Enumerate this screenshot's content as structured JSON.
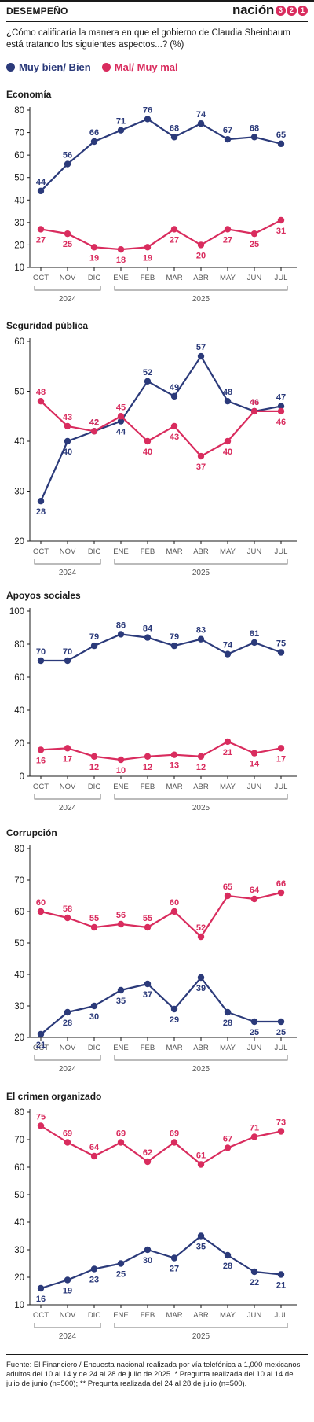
{
  "header": {
    "section": "DESEMPEÑO",
    "brand": "nación",
    "brand_digits": [
      "3",
      "2",
      "1"
    ]
  },
  "question": "¿Cómo calificaría la manera en que el gobierno de Claudia Sheinbaum está tratando los siguientes aspectos...?  (%)",
  "legend": [
    {
      "label": "Muy bien/ Bien",
      "color": "#2b3a7a"
    },
    {
      "label": "Mal/ Muy mal",
      "color": "#d92c5e"
    }
  ],
  "colors": {
    "series_a": "#2b3a7a",
    "series_b": "#d92c5e",
    "axis": "#1a1a1a",
    "tick_text": "#555555"
  },
  "footer": "Fuente:  El Financiero / Encuesta nacional realizada por vía telefónica a 1,000 mexicanos adultos del 10 al 14 y de 24 al 28 de julio de 2025. * Pregunta realizada del 10 al 14 de julio de junio (n=500); ** Pregunta realizada del 24 al 28 de julio (n=500).",
  "chart_data": [
    {
      "type": "line",
      "title": "Economía",
      "categories": [
        "OCT",
        "NOV",
        "DIC",
        "ENE",
        "FEB",
        "MAR",
        "ABR",
        "MAY",
        "JUN",
        "JUL"
      ],
      "year_groups": [
        {
          "label": "2024",
          "from": 0,
          "to": 2
        },
        {
          "label": "2025",
          "from": 3,
          "to": 9
        }
      ],
      "ylim": [
        10,
        80
      ],
      "yticks": [
        10,
        20,
        30,
        40,
        50,
        60,
        70,
        80
      ],
      "series": [
        {
          "name": "Muy bien/ Bien",
          "values": [
            44,
            56,
            66,
            71,
            76,
            68,
            74,
            67,
            68,
            65
          ]
        },
        {
          "name": "Mal/ Muy mal",
          "values": [
            27,
            25,
            19,
            18,
            19,
            27,
            20,
            27,
            25,
            31
          ]
        }
      ]
    },
    {
      "type": "line",
      "title": "Seguridad pública",
      "categories": [
        "OCT",
        "NOV",
        "DIC",
        "ENE",
        "FEB",
        "MAR",
        "ABR",
        "MAY",
        "JUN",
        "JUL"
      ],
      "year_groups": [
        {
          "label": "2024",
          "from": 0,
          "to": 2
        },
        {
          "label": "2025",
          "from": 3,
          "to": 9
        }
      ],
      "ylim": [
        20,
        60
      ],
      "yticks": [
        20,
        30,
        40,
        50,
        60
      ],
      "series": [
        {
          "name": "Muy bien/ Bien",
          "values": [
            28,
            40,
            42,
            44,
            52,
            49,
            57,
            48,
            46,
            47
          ]
        },
        {
          "name": "Mal/ Muy mal",
          "values": [
            48,
            43,
            42,
            45,
            40,
            43,
            37,
            40,
            46,
            46
          ]
        }
      ]
    },
    {
      "type": "line",
      "title": "Apoyos sociales",
      "categories": [
        "OCT",
        "NOV",
        "DIC",
        "ENE",
        "FEB",
        "MAR",
        "ABR",
        "MAY",
        "JUN",
        "JUL"
      ],
      "year_groups": [
        {
          "label": "2024",
          "from": 0,
          "to": 2
        },
        {
          "label": "2025",
          "from": 3,
          "to": 9
        }
      ],
      "ylim": [
        0,
        100
      ],
      "yticks": [
        0,
        20,
        40,
        60,
        80,
        100
      ],
      "series": [
        {
          "name": "Muy bien/ Bien",
          "values": [
            70,
            70,
            79,
            86,
            84,
            79,
            83,
            74,
            81,
            75
          ]
        },
        {
          "name": "Mal/ Muy mal",
          "values": [
            16,
            17,
            12,
            10,
            12,
            13,
            12,
            21,
            14,
            17
          ]
        }
      ]
    },
    {
      "type": "line",
      "title": "Corrupción",
      "categories": [
        "OCT",
        "NOV",
        "DIC",
        "ENE",
        "FEB",
        "MAR",
        "ABR",
        "MAY",
        "JUN",
        "JUL"
      ],
      "year_groups": [
        {
          "label": "2024",
          "from": 0,
          "to": 2
        },
        {
          "label": "2025",
          "from": 3,
          "to": 9
        }
      ],
      "ylim": [
        20,
        80
      ],
      "yticks": [
        20,
        30,
        40,
        50,
        60,
        70,
        80
      ],
      "series": [
        {
          "name": "Muy bien/ Bien",
          "values": [
            21,
            28,
            30,
            35,
            37,
            29,
            39,
            28,
            25,
            25
          ]
        },
        {
          "name": "Mal/ Muy mal",
          "values": [
            60,
            58,
            55,
            56,
            55,
            60,
            52,
            65,
            64,
            66
          ]
        }
      ]
    },
    {
      "type": "line",
      "title": "El crimen organizado",
      "categories": [
        "OCT",
        "NOV",
        "DIC",
        "ENE",
        "FEB",
        "MAR",
        "ABR",
        "MAY",
        "JUN",
        "JUL"
      ],
      "year_groups": [
        {
          "label": "2024",
          "from": 0,
          "to": 2
        },
        {
          "label": "2025",
          "from": 3,
          "to": 9
        }
      ],
      "ylim": [
        10,
        80
      ],
      "yticks": [
        10,
        20,
        30,
        40,
        50,
        60,
        70,
        80
      ],
      "series": [
        {
          "name": "Muy bien/ Bien",
          "values": [
            16,
            19,
            23,
            25,
            30,
            27,
            35,
            28,
            22,
            21
          ]
        },
        {
          "name": "Mal/ Muy mal",
          "values": [
            75,
            69,
            64,
            69,
            62,
            69,
            61,
            67,
            71,
            73
          ]
        }
      ]
    }
  ]
}
